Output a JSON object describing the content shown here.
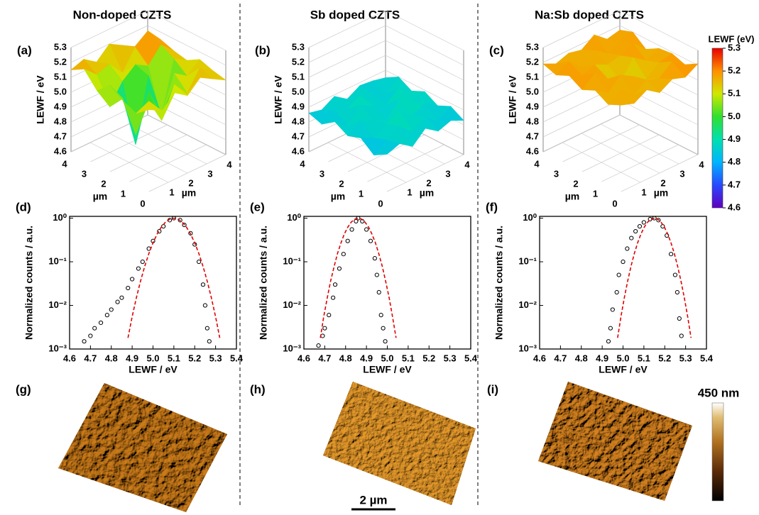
{
  "columns": [
    "Non-doped CZTS",
    "Sb doped CZTS",
    "Na:Sb doped CZTS"
  ],
  "chart_data": [
    {
      "type": "surface",
      "label": "(a)",
      "zlabel": "LEWF / eV",
      "xlabel": "µm",
      "ylabel": "µm",
      "xlim": [
        0,
        4
      ],
      "ylim": [
        0,
        4
      ],
      "zlim": [
        4.6,
        5.3
      ],
      "xticks": [
        0,
        1,
        2,
        3,
        4
      ],
      "yticks": [
        1,
        2,
        3,
        4
      ],
      "zticks": [
        4.6,
        4.7,
        4.8,
        4.9,
        {
          "value": 5,
          "label": "5.0"
        },
        5.1,
        5.2,
        5.3
      ],
      "z": [
        [
          5.15,
          5.1,
          5.18,
          5.12,
          5.2,
          5.15,
          5.1
        ],
        [
          5.08,
          5.12,
          4.95,
          5.15,
          5.05,
          5.18,
          5.12
        ],
        [
          5.12,
          4.85,
          5.1,
          4.9,
          5.14,
          5.08,
          5.15
        ],
        [
          5.18,
          5.05,
          4.7,
          5.12,
          4.8,
          5.15,
          5.1
        ],
        [
          5.1,
          4.95,
          5.08,
          5.15,
          5.1,
          5.2,
          5.12
        ],
        [
          5.2,
          5.12,
          5.15,
          5.05,
          5.18,
          5.25,
          5.15
        ],
        [
          5.15,
          5.18,
          5.12,
          5.2,
          5.15,
          5.1,
          5.08
        ]
      ]
    },
    {
      "type": "surface",
      "label": "(b)",
      "zlabel": "LEWF / eV",
      "xlabel": "µm",
      "ylabel": "µm",
      "xlim": [
        0,
        4
      ],
      "ylim": [
        0,
        4
      ],
      "zlim": [
        4.6,
        5.3
      ],
      "xticks": [
        0,
        1,
        2,
        3,
        4
      ],
      "yticks": [
        1,
        2,
        3,
        4
      ],
      "zticks": [
        4.6,
        4.7,
        4.8,
        4.9,
        {
          "value": 5,
          "label": "5.0"
        },
        5.1,
        5.2,
        5.3
      ],
      "z": [
        [
          4.85,
          4.88,
          4.82,
          4.9,
          4.84,
          4.87,
          4.83
        ],
        [
          4.8,
          4.86,
          4.91,
          4.83,
          4.89,
          4.82,
          4.88
        ],
        [
          4.87,
          4.83,
          4.88,
          4.93,
          4.85,
          4.9,
          4.84
        ],
        [
          4.84,
          4.9,
          4.86,
          4.82,
          4.92,
          4.86,
          4.89
        ],
        [
          4.89,
          4.82,
          4.92,
          4.87,
          4.84,
          4.91,
          4.85
        ],
        [
          4.83,
          4.88,
          4.85,
          4.9,
          4.86,
          4.83,
          4.9
        ],
        [
          4.86,
          4.84,
          4.89,
          4.83,
          4.88,
          4.87,
          4.85
        ]
      ]
    },
    {
      "type": "surface",
      "label": "(c)",
      "zlabel": "LEWF / eV",
      "xlabel": "µm",
      "ylabel": "µm",
      "xlim": [
        0,
        4
      ],
      "ylim": [
        0,
        4
      ],
      "zlim": [
        4.6,
        5.3
      ],
      "xticks": [
        0,
        1,
        2,
        3,
        4
      ],
      "yticks": [
        1,
        2,
        3,
        4
      ],
      "zticks": [
        4.6,
        4.7,
        4.8,
        4.9,
        {
          "value": 5,
          "label": "5.0"
        },
        5.1,
        5.2,
        5.3
      ],
      "z": [
        [
          5.18,
          5.15,
          5.2,
          5.14,
          5.19,
          5.16,
          5.21
        ],
        [
          5.14,
          5.2,
          5.12,
          5.18,
          5.15,
          5.22,
          5.16
        ],
        [
          5.19,
          5.13,
          5.21,
          5.16,
          5.1,
          5.17,
          5.19
        ],
        [
          5.15,
          5.22,
          5.14,
          5.08,
          5.2,
          5.14,
          5.18
        ],
        [
          5.2,
          5.16,
          5.19,
          5.15,
          5.17,
          5.21,
          5.13
        ],
        [
          5.16,
          5.21,
          5.13,
          5.2,
          5.14,
          5.18,
          5.2
        ],
        [
          5.19,
          5.15,
          5.18,
          5.16,
          5.22,
          5.15,
          5.17
        ]
      ]
    },
    {
      "type": "colorbar",
      "title": "LEWF (eV)",
      "lim": [
        4.6,
        5.3
      ],
      "ticks": [
        4.6,
        4.7,
        4.8,
        4.9,
        {
          "value": 5,
          "label": "5.0"
        },
        5.1,
        5.2,
        5.3
      ],
      "colors": [
        "#6000c0",
        "#2848ff",
        "#00b4ff",
        "#00e0b0",
        "#30e030",
        "#d0e800",
        "#ff9000",
        "#e80000"
      ]
    },
    {
      "type": "scatter",
      "label": "(d)",
      "xlabel": "LEWF / eV",
      "ylabel": "Normalized counts / a.u.",
      "yscale": "log",
      "xlim": [
        4.6,
        5.4
      ],
      "ylim": [
        0.001,
        1.1
      ],
      "xticks": [
        4.6,
        4.7,
        4.8,
        4.9,
        {
          "value": 5,
          "label": "5.0"
        },
        5.1,
        5.2,
        5.3,
        5.4
      ],
      "yticks": [
        {
          "value": 0.001,
          "label": "10⁻³"
        },
        {
          "value": 0.01,
          "label": "10⁻²"
        },
        {
          "value": 0.1,
          "label": "10⁻¹"
        },
        {
          "value": 1,
          "label": "10⁰"
        }
      ],
      "series": [
        {
          "color": "#000000",
          "marker": "open-circle",
          "x": [
            4.67,
            4.7,
            4.72,
            4.75,
            4.78,
            4.8,
            4.83,
            4.85,
            4.88,
            4.9,
            4.93,
            4.95,
            4.98,
            5.0,
            5.03,
            5.05,
            5.08,
            5.1,
            5.13,
            5.15,
            5.18,
            5.2,
            5.22,
            5.24,
            5.25,
            5.26,
            5.27
          ],
          "values": [
            0.0015,
            0.002,
            0.003,
            0.004,
            0.006,
            0.008,
            0.012,
            0.015,
            0.025,
            0.04,
            0.07,
            0.1,
            0.2,
            0.3,
            0.5,
            0.65,
            0.9,
            1.0,
            0.9,
            0.7,
            0.45,
            0.25,
            0.1,
            0.03,
            0.01,
            0.003,
            0.0015
          ]
        },
        {
          "color": "#e00000",
          "line": "dashed",
          "x": [
            4.88,
            4.9,
            4.92,
            4.94,
            4.96,
            4.98,
            5.0,
            5.02,
            5.04,
            5.06,
            5.08,
            5.1,
            5.12,
            5.14,
            5.16,
            5.18,
            5.2,
            5.22,
            5.24,
            5.26,
            5.28,
            5.3,
            5.32
          ],
          "values": [
            0.0018,
            0.0055,
            0.0148,
            0.0358,
            0.078,
            0.154,
            0.272,
            0.435,
            0.626,
            0.812,
            0.949,
            1,
            0.949,
            0.812,
            0.626,
            0.435,
            0.272,
            0.154,
            0.078,
            0.0358,
            0.0148,
            0.0055,
            0.0018
          ]
        }
      ]
    },
    {
      "type": "scatter",
      "label": "(e)",
      "xlabel": "LEWF / eV",
      "ylabel": "Normalized counts / a.u.",
      "yscale": "log",
      "xlim": [
        4.6,
        5.4
      ],
      "ylim": [
        0.001,
        1.1
      ],
      "xticks": [
        4.6,
        4.7,
        4.8,
        4.9,
        {
          "value": 5,
          "label": "5.0"
        },
        5.1,
        5.2,
        5.3,
        5.4
      ],
      "yticks": [
        {
          "value": 0.001,
          "label": "10⁻³"
        },
        {
          "value": 0.01,
          "label": "10⁻²"
        },
        {
          "value": 0.1,
          "label": "10⁻¹"
        },
        {
          "value": 1,
          "label": "10⁰"
        }
      ],
      "series": [
        {
          "color": "#000000",
          "marker": "open-circle",
          "x": [
            4.67,
            4.69,
            4.7,
            4.72,
            4.74,
            4.75,
            4.77,
            4.79,
            4.81,
            4.83,
            4.85,
            4.86,
            4.88,
            4.9,
            4.92,
            4.94,
            4.95,
            4.96,
            4.97,
            4.98,
            4.99
          ],
          "values": [
            0.0012,
            0.002,
            0.003,
            0.006,
            0.015,
            0.03,
            0.07,
            0.15,
            0.3,
            0.55,
            0.85,
            1.0,
            0.85,
            0.55,
            0.3,
            0.12,
            0.05,
            0.02,
            0.006,
            0.003,
            0.0015
          ]
        },
        {
          "color": "#e00000",
          "line": "dashed",
          "x": [
            4.679,
            4.695,
            4.712,
            4.728,
            4.745,
            4.761,
            4.778,
            4.794,
            4.811,
            4.827,
            4.844,
            4.86,
            4.877,
            4.893,
            4.91,
            4.926,
            4.943,
            4.959,
            4.976,
            4.992,
            5.009,
            5.025,
            5.042
          ],
          "values": [
            0.0018,
            0.0055,
            0.0148,
            0.0358,
            0.078,
            0.154,
            0.272,
            0.435,
            0.626,
            0.812,
            0.949,
            1,
            0.949,
            0.812,
            0.626,
            0.435,
            0.272,
            0.154,
            0.078,
            0.0358,
            0.0148,
            0.0055,
            0.0018
          ]
        }
      ]
    },
    {
      "type": "scatter",
      "label": "(f)",
      "xlabel": "LEWF / eV",
      "ylabel": "Normalized counts / a.u.",
      "yscale": "log",
      "xlim": [
        4.6,
        5.4
      ],
      "ylim": [
        0.001,
        1.1
      ],
      "xticks": [
        4.6,
        4.7,
        4.8,
        4.9,
        {
          "value": 5,
          "label": "5.0"
        },
        5.1,
        5.2,
        5.3,
        5.4
      ],
      "yticks": [
        {
          "value": 0.001,
          "label": "10⁻³"
        },
        {
          "value": 0.01,
          "label": "10⁻²"
        },
        {
          "value": 0.1,
          "label": "10⁻¹"
        },
        {
          "value": 1,
          "label": "10⁰"
        }
      ],
      "series": [
        {
          "color": "#000000",
          "marker": "open-circle",
          "x": [
            4.93,
            4.94,
            4.95,
            4.97,
            4.98,
            5.0,
            5.02,
            5.04,
            5.06,
            5.08,
            5.1,
            5.13,
            5.15,
            5.17,
            5.19,
            5.21,
            5.23,
            5.25,
            5.26,
            5.27,
            5.28
          ],
          "values": [
            0.0015,
            0.003,
            0.008,
            0.02,
            0.05,
            0.1,
            0.2,
            0.35,
            0.5,
            0.65,
            0.8,
            0.95,
            1.0,
            0.9,
            0.65,
            0.4,
            0.15,
            0.05,
            0.02,
            0.005,
            0.002
          ]
        },
        {
          "color": "#e00000",
          "line": "dashed",
          "x": [
            4.974,
            4.99,
            5.006,
            5.022,
            5.038,
            5.054,
            5.07,
            5.086,
            5.102,
            5.118,
            5.134,
            5.15,
            5.166,
            5.182,
            5.198,
            5.214,
            5.23,
            5.246,
            5.262,
            5.278,
            5.294,
            5.31,
            5.326
          ],
          "values": [
            0.0018,
            0.0055,
            0.0148,
            0.0358,
            0.078,
            0.154,
            0.272,
            0.435,
            0.626,
            0.812,
            0.949,
            1,
            0.949,
            0.812,
            0.626,
            0.435,
            0.272,
            0.154,
            0.078,
            0.0358,
            0.0148,
            0.0055,
            0.0018
          ]
        }
      ]
    }
  ],
  "afm": {
    "panels": [
      "(g)",
      "(h)",
      "(i)"
    ],
    "colorbar_label": "450 nm",
    "scale_bar": "2 µm"
  }
}
